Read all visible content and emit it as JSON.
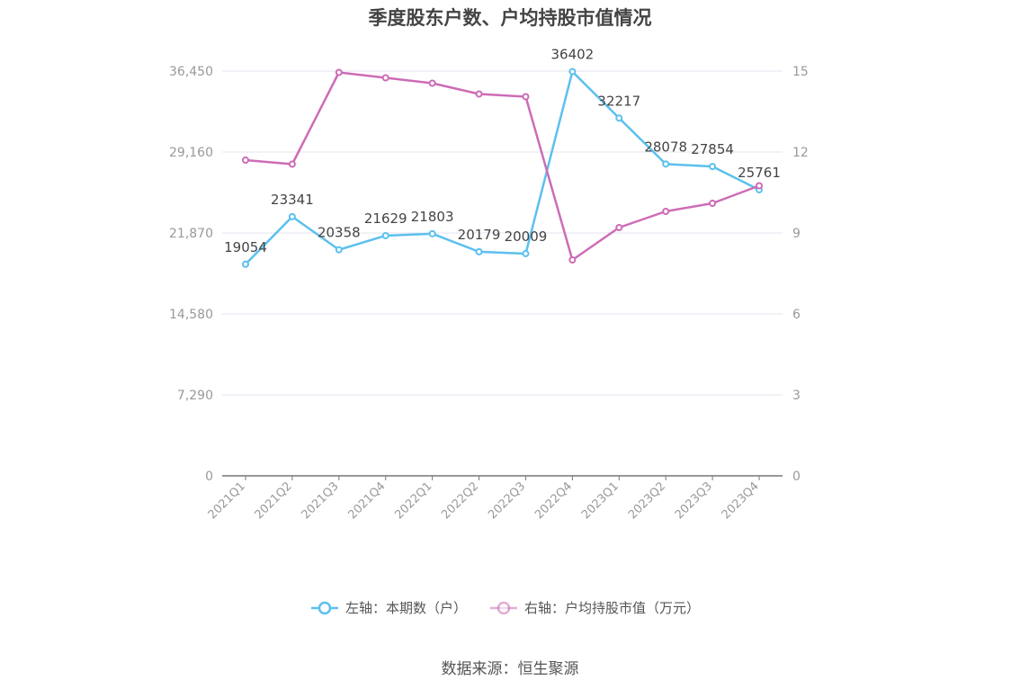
{
  "title": "季度股东户数、户均持股市值情况",
  "source": "数据来源：恒生聚源",
  "colors": {
    "left_series": "#5bc0ee",
    "right_series": "#cd6cb6",
    "grid": "#e3e3ef",
    "axis": "#777777"
  },
  "chart_data": {
    "type": "line",
    "categories": [
      "2021Q1",
      "2021Q2",
      "2021Q3",
      "2021Q4",
      "2022Q1",
      "2022Q2",
      "2022Q3",
      "2022Q4",
      "2023Q1",
      "2023Q2",
      "2023Q3",
      "2023Q4"
    ],
    "y_left": {
      "ticks": [
        0,
        7290,
        14580,
        21870,
        29160,
        36450
      ],
      "tick_labels": [
        "0",
        "7,290",
        "14,580",
        "21,870",
        "29,160",
        "36,450"
      ],
      "range": [
        0,
        36450
      ]
    },
    "y_right": {
      "ticks": [
        0,
        3,
        6,
        9,
        12,
        15
      ],
      "tick_labels": [
        "0",
        "3",
        "6",
        "9",
        "12",
        "15"
      ],
      "range": [
        0,
        15
      ]
    },
    "series": [
      {
        "name": "左轴：本期数（户）",
        "axis": "left",
        "values": [
          19054,
          23341,
          20358,
          21629,
          21803,
          20179,
          20009,
          36402,
          32217,
          28078,
          27854,
          25761
        ],
        "labels": [
          "19054",
          "23341",
          "20358",
          "21629",
          "21803",
          "20179",
          "20009",
          "36402",
          "32217",
          "28078",
          "27854",
          "25761"
        ]
      },
      {
        "name": "右轴：户均持股市值（万元）",
        "axis": "right",
        "values": [
          11.7,
          11.55,
          14.95,
          14.75,
          14.55,
          14.15,
          14.05,
          8.0,
          9.2,
          9.8,
          10.1,
          10.75
        ]
      }
    ],
    "grid": true,
    "legend_position": "bottom"
  }
}
